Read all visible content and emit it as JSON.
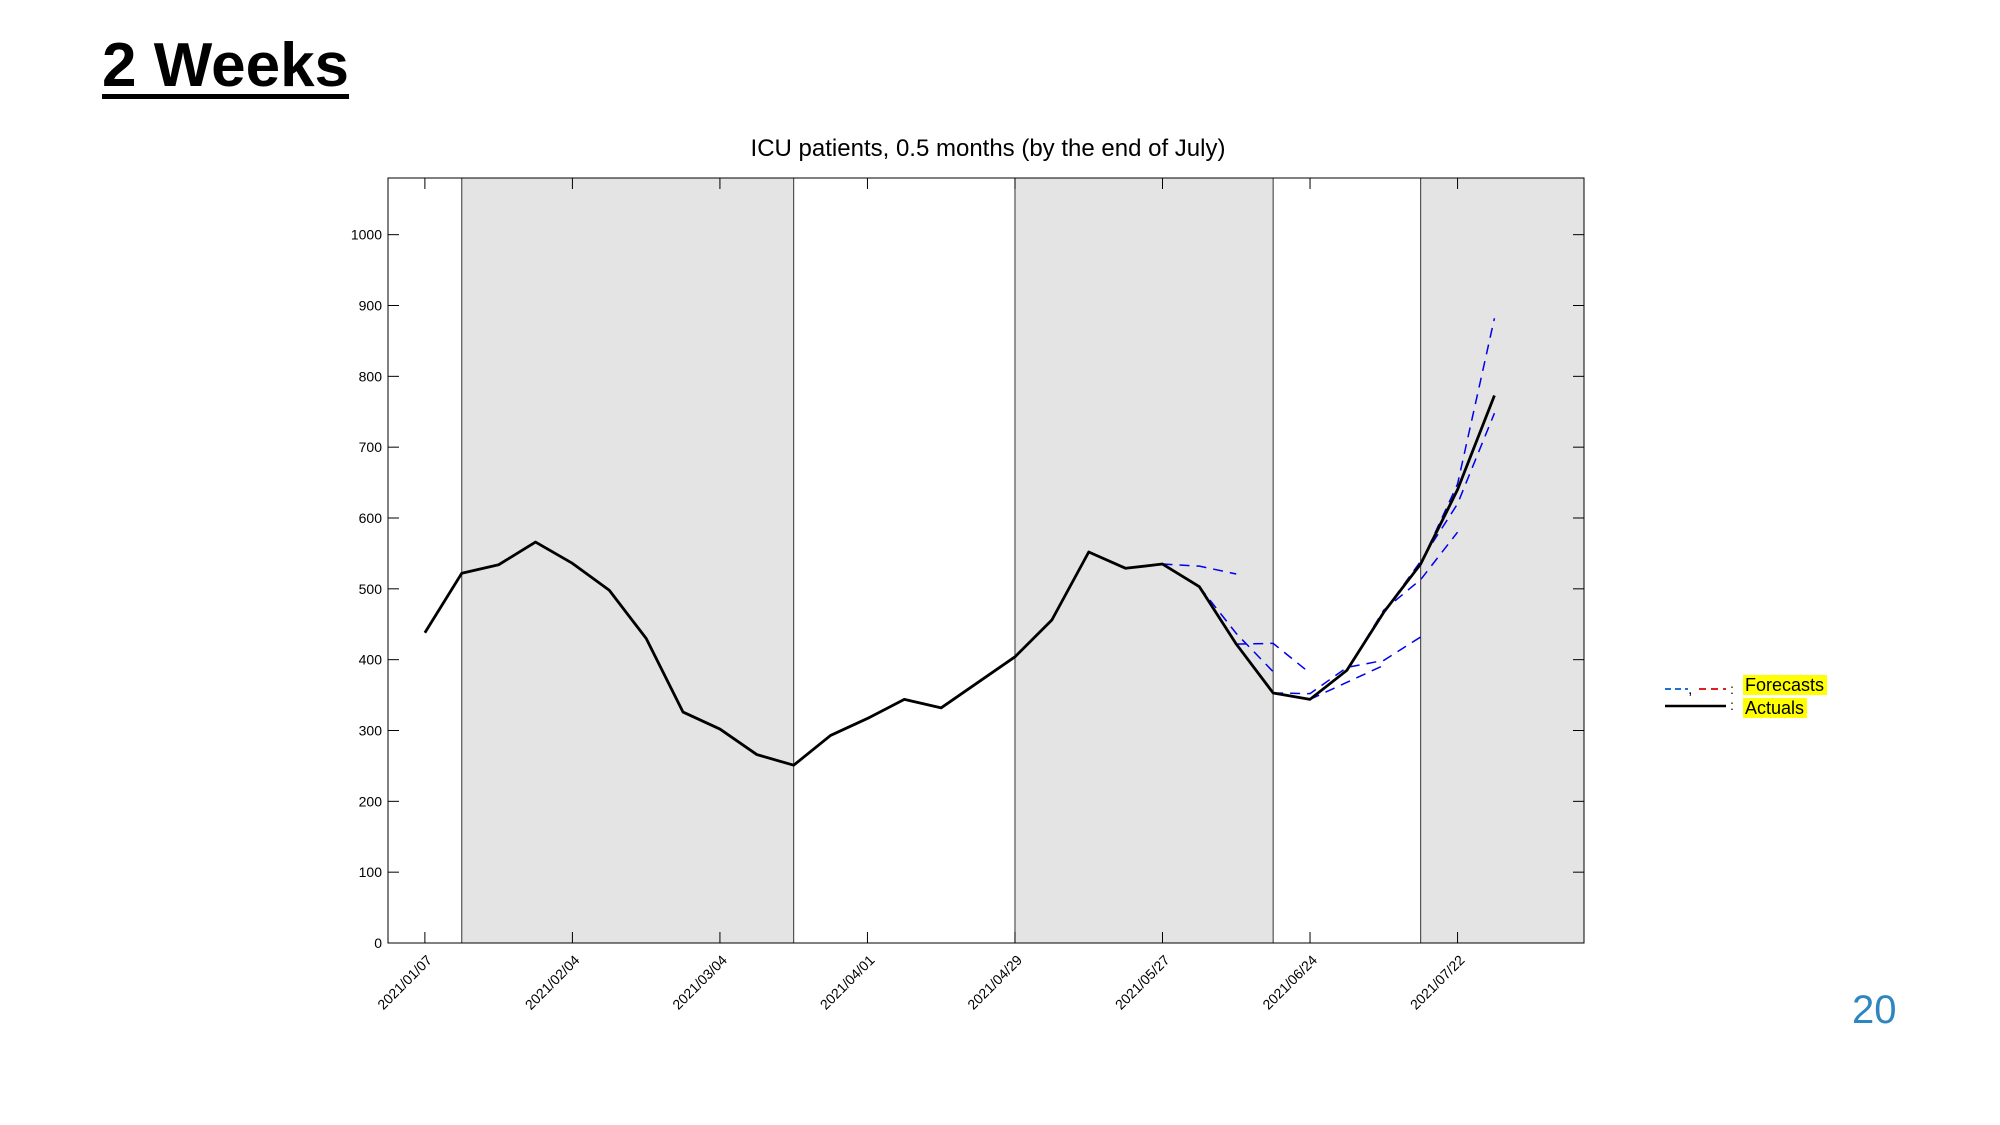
{
  "slide": {
    "title": "2 Weeks",
    "page_number": "20"
  },
  "colors": {
    "actual": "#000000",
    "forecast": "#0000ee",
    "forecast_legend_alt": "#e02020",
    "shade": "#e4e4e4",
    "legend_highlight": "#ffff00",
    "page_number": "#2e86c1"
  },
  "chart_data": {
    "type": "line",
    "title": "ICU patients, 0.5 months (by the end of July)",
    "xlabel": "",
    "ylabel": "",
    "ylim": [
      0,
      1080
    ],
    "yticks": [
      0,
      100,
      200,
      300,
      400,
      500,
      600,
      700,
      800,
      900,
      1000
    ],
    "xlim": [
      "2020-12-31",
      "2021-08-15"
    ],
    "x_tick_labels": [
      "2021/01/07",
      "2021/02/04",
      "2021/03/04",
      "2021/04/01",
      "2021/04/29",
      "2021/05/27",
      "2021/06/24",
      "2021/07/22"
    ],
    "x_tick_dates": [
      "2021-01-07",
      "2021-02-04",
      "2021-03-04",
      "2021-04-01",
      "2021-04-29",
      "2021-05-27",
      "2021-06-24",
      "2021-07-22"
    ],
    "shaded_periods": [
      [
        "2021-01-14",
        "2021-03-18"
      ],
      [
        "2021-04-29",
        "2021-06-17"
      ],
      [
        "2021-07-15",
        "2021-08-15"
      ]
    ],
    "legend": {
      "position": "right",
      "entries": [
        {
          "label": "Forecasts",
          "style": "dashed"
        },
        {
          "label": "Actuals",
          "style": "solid"
        }
      ]
    },
    "series": [
      {
        "name": "Actuals",
        "style": "solid",
        "points": [
          [
            "2021-01-07",
            438
          ],
          [
            "2021-01-14",
            522
          ],
          [
            "2021-01-21",
            534
          ],
          [
            "2021-01-28",
            566
          ],
          [
            "2021-02-04",
            536
          ],
          [
            "2021-02-11",
            498
          ],
          [
            "2021-02-18",
            430
          ],
          [
            "2021-02-25",
            326
          ],
          [
            "2021-03-04",
            302
          ],
          [
            "2021-03-11",
            266
          ],
          [
            "2021-03-18",
            251
          ],
          [
            "2021-03-25",
            293
          ],
          [
            "2021-04-01",
            317
          ],
          [
            "2021-04-08",
            344
          ],
          [
            "2021-04-15",
            332
          ],
          [
            "2021-04-22",
            368
          ],
          [
            "2021-04-29",
            404
          ],
          [
            "2021-05-06",
            456
          ],
          [
            "2021-05-13",
            552
          ],
          [
            "2021-05-20",
            529
          ],
          [
            "2021-05-27",
            535
          ],
          [
            "2021-06-03",
            503
          ],
          [
            "2021-06-10",
            422
          ],
          [
            "2021-06-17",
            353
          ],
          [
            "2021-06-24",
            344
          ],
          [
            "2021-07-01",
            385
          ],
          [
            "2021-07-08",
            467
          ],
          [
            "2021-07-15",
            535
          ],
          [
            "2021-07-22",
            640
          ],
          [
            "2021-07-29",
            773
          ]
        ]
      },
      {
        "name": "Forecasts",
        "style": "dashed",
        "paths": [
          [
            [
              "2021-05-27",
              535
            ],
            [
              "2021-06-03",
              532
            ],
            [
              "2021-06-10",
              521
            ]
          ],
          [
            [
              "2021-06-03",
              503
            ],
            [
              "2021-06-10",
              437
            ],
            [
              "2021-06-17",
              383
            ]
          ],
          [
            [
              "2021-06-10",
              422
            ],
            [
              "2021-06-17",
              423
            ],
            [
              "2021-06-24",
              381
            ]
          ],
          [
            [
              "2021-06-17",
              353
            ],
            [
              "2021-06-24",
              352
            ],
            [
              "2021-07-01",
              389
            ],
            [
              "2021-07-08",
              399
            ],
            [
              "2021-07-15",
              432
            ]
          ],
          [
            [
              "2021-06-24",
              344
            ],
            [
              "2021-07-01",
              368
            ],
            [
              "2021-07-08",
              392
            ]
          ],
          [
            [
              "2021-07-01",
              385
            ],
            [
              "2021-07-08",
              470
            ],
            [
              "2021-07-15",
              513
            ],
            [
              "2021-07-22",
              580
            ]
          ],
          [
            [
              "2021-07-08",
              467
            ],
            [
              "2021-07-15",
              539
            ],
            [
              "2021-07-22",
              620
            ],
            [
              "2021-07-29",
              748
            ]
          ],
          [
            [
              "2021-07-15",
              535
            ],
            [
              "2021-07-22",
              648
            ],
            [
              "2021-07-29",
              882
            ]
          ]
        ]
      }
    ]
  }
}
